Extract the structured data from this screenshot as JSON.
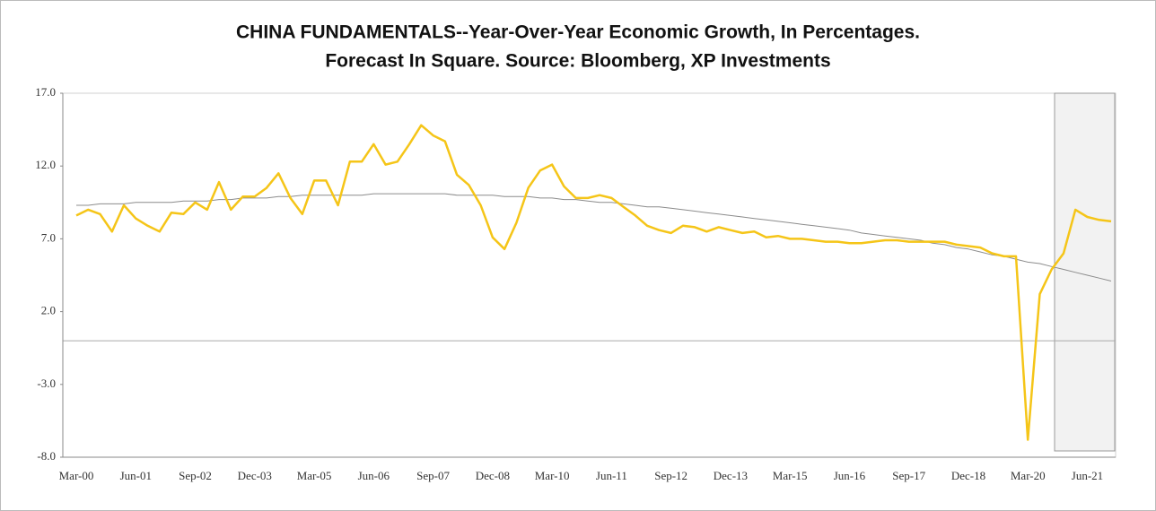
{
  "chart_data": {
    "type": "line",
    "title": [
      "CHINA FUNDAMENTALS--Year-Over-Year Economic Growth, In Percentages.",
      "Forecast In Square. Source: Bloomberg, XP Investments"
    ],
    "categories": [
      "Mar-00",
      null,
      null,
      null,
      null,
      "Jun-01",
      null,
      null,
      null,
      null,
      "Sep-02",
      null,
      null,
      null,
      null,
      "Dec-03",
      null,
      null,
      null,
      null,
      "Mar-05",
      null,
      null,
      null,
      null,
      "Jun-06",
      null,
      null,
      null,
      null,
      "Sep-07",
      null,
      null,
      null,
      null,
      "Dec-08",
      null,
      null,
      null,
      null,
      "Mar-10",
      null,
      null,
      null,
      null,
      "Jun-11",
      null,
      null,
      null,
      null,
      "Sep-12",
      null,
      null,
      null,
      null,
      "Dec-13",
      null,
      null,
      null,
      null,
      "Mar-15",
      null,
      null,
      null,
      null,
      "Jun-16",
      null,
      null,
      null,
      null,
      "Sep-17",
      null,
      null,
      null,
      null,
      "Dec-18",
      null,
      null,
      null,
      null,
      "Mar-20",
      null,
      null,
      null,
      null,
      "Jun-21",
      null,
      null
    ],
    "series": [
      {
        "color": "#f5c518",
        "values": [
          8.6,
          9.0,
          8.7,
          7.5,
          9.3,
          8.4,
          7.9,
          7.5,
          8.8,
          8.7,
          9.5,
          9.0,
          10.9,
          9.0,
          9.9,
          9.9,
          10.5,
          11.5,
          9.8,
          8.7,
          11.0,
          11.0,
          9.3,
          12.3,
          12.3,
          13.5,
          12.1,
          12.3,
          13.5,
          14.8,
          14.1,
          13.7,
          11.4,
          10.7,
          9.3,
          7.1,
          6.3,
          8.1,
          10.5,
          11.7,
          12.1,
          10.6,
          9.8,
          9.8,
          10.0,
          9.8,
          9.2,
          8.6,
          7.9,
          7.6,
          7.4,
          7.9,
          7.8,
          7.5,
          7.8,
          7.6,
          7.4,
          7.5,
          7.1,
          7.2,
          7.0,
          7.0,
          6.9,
          6.8,
          6.8,
          6.7,
          6.7,
          6.8,
          6.9,
          6.9,
          6.8,
          6.8,
          6.8,
          6.8,
          6.6,
          6.5,
          6.4,
          6.0,
          5.8,
          5.8,
          -6.8,
          3.2,
          4.9,
          6.0,
          9.0,
          8.5,
          8.3,
          8.2
        ]
      },
      {
        "color": "#8c8c8c",
        "values": [
          9.3,
          9.3,
          9.4,
          9.4,
          9.4,
          9.5,
          9.5,
          9.5,
          9.5,
          9.6,
          9.6,
          9.6,
          9.7,
          9.7,
          9.8,
          9.8,
          9.8,
          9.9,
          9.9,
          10.0,
          10.0,
          10.0,
          10.0,
          10.0,
          10.0,
          10.1,
          10.1,
          10.1,
          10.1,
          10.1,
          10.1,
          10.1,
          10.0,
          10.0,
          10.0,
          10.0,
          9.9,
          9.9,
          9.9,
          9.8,
          9.8,
          9.7,
          9.7,
          9.6,
          9.5,
          9.5,
          9.4,
          9.3,
          9.2,
          9.2,
          9.1,
          9.0,
          8.9,
          8.8,
          8.7,
          8.6,
          8.5,
          8.4,
          8.3,
          8.2,
          8.1,
          8.0,
          7.9,
          7.8,
          7.7,
          7.6,
          7.4,
          7.3,
          7.2,
          7.1,
          7.0,
          6.9,
          6.7,
          6.6,
          6.4,
          6.3,
          6.1,
          5.9,
          5.8,
          5.6,
          5.4,
          5.3,
          5.1,
          4.9,
          4.7,
          4.5,
          4.3,
          4.1
        ]
      }
    ],
    "ylim": [
      -8,
      17
    ],
    "yticks": [
      {
        "value": -8,
        "label": "-8.0"
      },
      {
        "value": -3,
        "label": "-3.0"
      },
      {
        "value": 2,
        "label": "2.0"
      },
      {
        "value": 7,
        "label": "7.0"
      },
      {
        "value": 12,
        "label": "12.0"
      },
      {
        "value": 17,
        "label": "17.0"
      }
    ],
    "grid": false
  }
}
